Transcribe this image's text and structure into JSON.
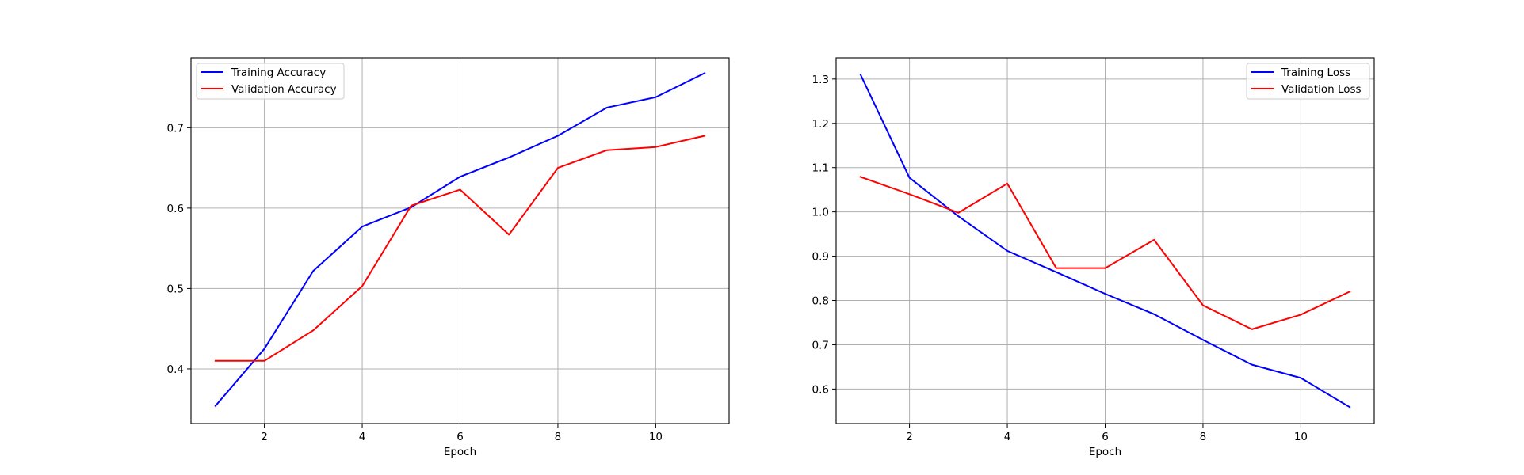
{
  "chart_data": [
    {
      "type": "line",
      "title": "",
      "xlabel": "Epoch",
      "ylabel": "",
      "xlim": [
        0.5,
        11.5
      ],
      "ylim": [
        0.332,
        0.787
      ],
      "xticks": [
        2,
        4,
        6,
        8,
        10
      ],
      "yticks": [
        0.4,
        0.5,
        0.6,
        0.7
      ],
      "ytick_labels": [
        "0.4",
        "0.5",
        "0.6",
        "0.7"
      ],
      "grid": true,
      "legend_position": "upper-left",
      "x": [
        1,
        2,
        3,
        4,
        5,
        6,
        7,
        8,
        9,
        10,
        11
      ],
      "series": [
        {
          "name": "Training Accuracy",
          "color": "#0000ff",
          "values": [
            0.354,
            0.425,
            0.522,
            0.577,
            0.601,
            0.639,
            0.663,
            0.69,
            0.725,
            0.738,
            0.768
          ]
        },
        {
          "name": "Validation Accuracy",
          "color": "#ff0000",
          "values": [
            0.41,
            0.41,
            0.448,
            0.503,
            0.603,
            0.623,
            0.567,
            0.65,
            0.672,
            0.676,
            0.69
          ]
        }
      ]
    },
    {
      "type": "line",
      "title": "",
      "xlabel": "Epoch",
      "ylabel": "",
      "xlim": [
        0.5,
        11.5
      ],
      "ylim": [
        0.522,
        1.348
      ],
      "xticks": [
        2,
        4,
        6,
        8,
        10
      ],
      "yticks": [
        0.6,
        0.7,
        0.8,
        0.9,
        1.0,
        1.1,
        1.2,
        1.3
      ],
      "ytick_labels": [
        "0.6",
        "0.7",
        "0.8",
        "0.9",
        "1.0",
        "1.1",
        "1.2",
        "1.3"
      ],
      "grid": true,
      "legend_position": "upper-right",
      "x": [
        1,
        2,
        3,
        4,
        5,
        6,
        7,
        8,
        9,
        10,
        11
      ],
      "series": [
        {
          "name": "Training Loss",
          "color": "#0000ff",
          "values": [
            1.31,
            1.077,
            0.99,
            0.912,
            0.864,
            0.815,
            0.769,
            0.711,
            0.655,
            0.625,
            0.559
          ]
        },
        {
          "name": "Validation Loss",
          "color": "#ff0000",
          "values": [
            1.079,
            1.04,
            0.998,
            1.064,
            0.873,
            0.873,
            0.937,
            0.789,
            0.735,
            0.768,
            0.82
          ]
        }
      ]
    }
  ]
}
